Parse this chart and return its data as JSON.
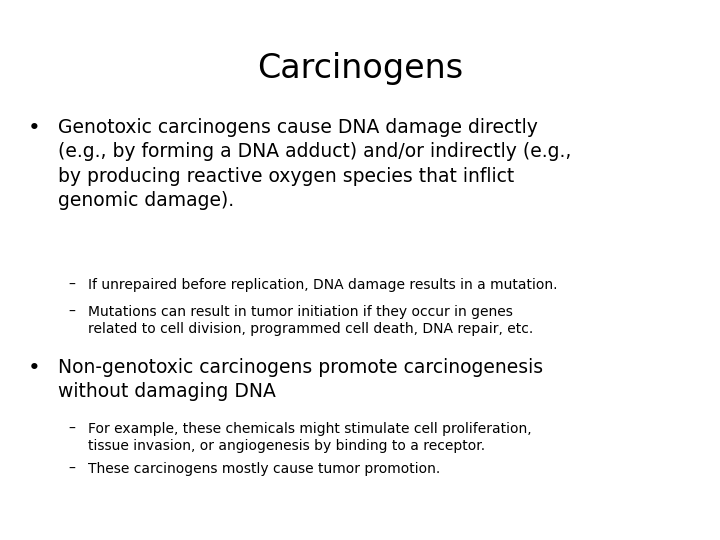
{
  "title": "Carcinogens",
  "title_fontsize": 24,
  "background_color": "#ffffff",
  "text_color": "#000000",
  "bullet1_text": "Genotoxic carcinogens cause DNA damage directly\n(e.g., by forming a DNA adduct) and/or indirectly (e.g.,\nby producing reactive oxygen species that inflict\ngenomic damage).",
  "bullet1_fontsize": 13.5,
  "sub1a_text": "If unrepaired before replication, DNA damage results in a mutation.",
  "sub1b_text": "Mutations can result in tumor initiation if they occur in genes\nrelated to cell division, programmed cell death, DNA repair, etc.",
  "sub_fontsize": 10,
  "bullet2_text": "Non-genotoxic carcinogens promote carcinogenesis\nwithout damaging DNA",
  "bullet2_fontsize": 13.5,
  "sub2a_text": "For example, these chemicals might stimulate cell proliferation,\ntissue invasion, or angiogenesis by binding to a receptor.",
  "sub2b_text": "These carcinogens mostly cause tumor promotion."
}
